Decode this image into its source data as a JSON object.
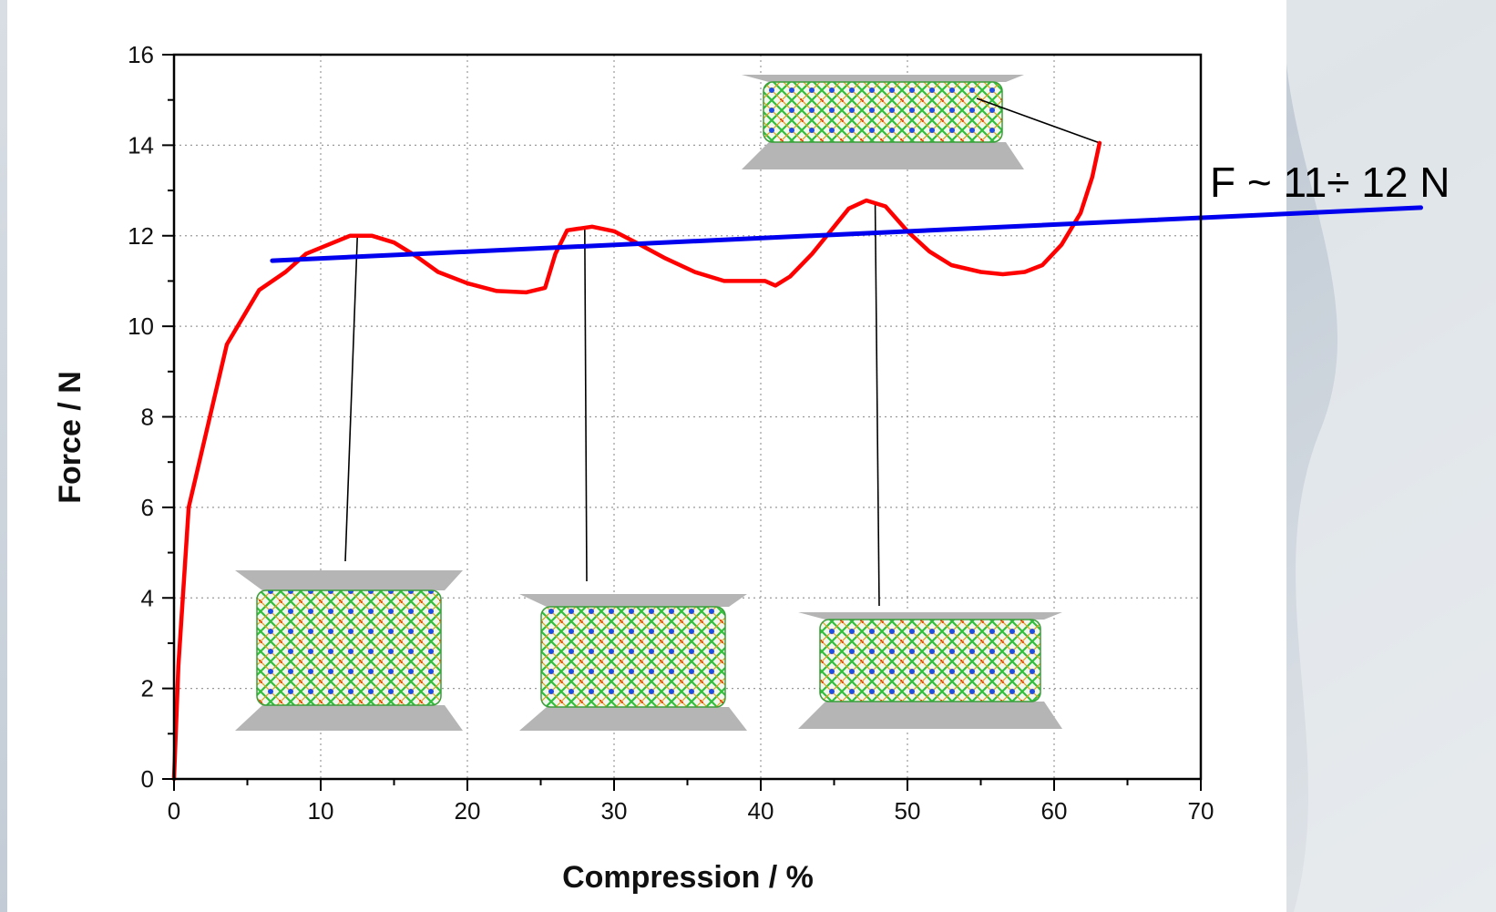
{
  "chart_data": {
    "type": "line",
    "title": "",
    "xlabel": "Compression / %",
    "ylabel": "Force / N",
    "xlim": [
      0,
      70
    ],
    "ylim": [
      0,
      16
    ],
    "xticks": [
      0,
      10,
      20,
      30,
      40,
      50,
      60,
      70
    ],
    "yticks": [
      0,
      2,
      4,
      6,
      8,
      10,
      12,
      14,
      16
    ],
    "grid": true,
    "series": [
      {
        "color": "#ff0000",
        "x": [
          0,
          0.3,
          1,
          3.6,
          5.8,
          7.6,
          9,
          10.5,
          12,
          13.5,
          15,
          16.5,
          18,
          20,
          22,
          24,
          25.3,
          26,
          26.8,
          28.5,
          30,
          31.5,
          33.5,
          35.5,
          37.5,
          39,
          40.3,
          41,
          42,
          43.5,
          45,
          46,
          47.2,
          48.5,
          50,
          51.5,
          53,
          55,
          56.5,
          58,
          59.2,
          60.5,
          61.8,
          62.6,
          63.1
        ],
        "y": [
          0,
          2.5,
          6,
          9.6,
          10.8,
          11.2,
          11.6,
          11.8,
          12.0,
          12.0,
          11.85,
          11.55,
          11.2,
          10.95,
          10.78,
          10.75,
          10.85,
          11.6,
          12.12,
          12.2,
          12.1,
          11.85,
          11.5,
          11.2,
          11.0,
          11.0,
          11.0,
          10.9,
          11.1,
          11.6,
          12.2,
          12.6,
          12.78,
          12.65,
          12.1,
          11.65,
          11.35,
          11.2,
          11.15,
          11.2,
          11.35,
          11.8,
          12.5,
          13.3,
          14.05
        ]
      },
      {
        "color": "#0000ee",
        "x": [
          6.7,
          85
        ],
        "y": [
          11.45,
          12.62
        ]
      }
    ],
    "annotations": [
      {
        "text": "F ~ 11÷ 12 N"
      }
    ]
  },
  "insets": [
    {
      "name": "inset-compressed-12pct",
      "point": [
        12.5,
        12.0
      ]
    },
    {
      "name": "inset-compressed-28pct",
      "point": [
        28.0,
        12.2
      ]
    },
    {
      "name": "inset-compressed-48pct",
      "point": [
        47.8,
        12.7
      ]
    },
    {
      "name": "inset-compressed-63pct",
      "point": [
        63.1,
        14.05
      ]
    }
  ],
  "colors": {
    "background": "#cfd6de",
    "panel": "#ffffff",
    "curve": "#ff0000",
    "trend": "#0000ee",
    "plate": "#b5b5b5"
  }
}
